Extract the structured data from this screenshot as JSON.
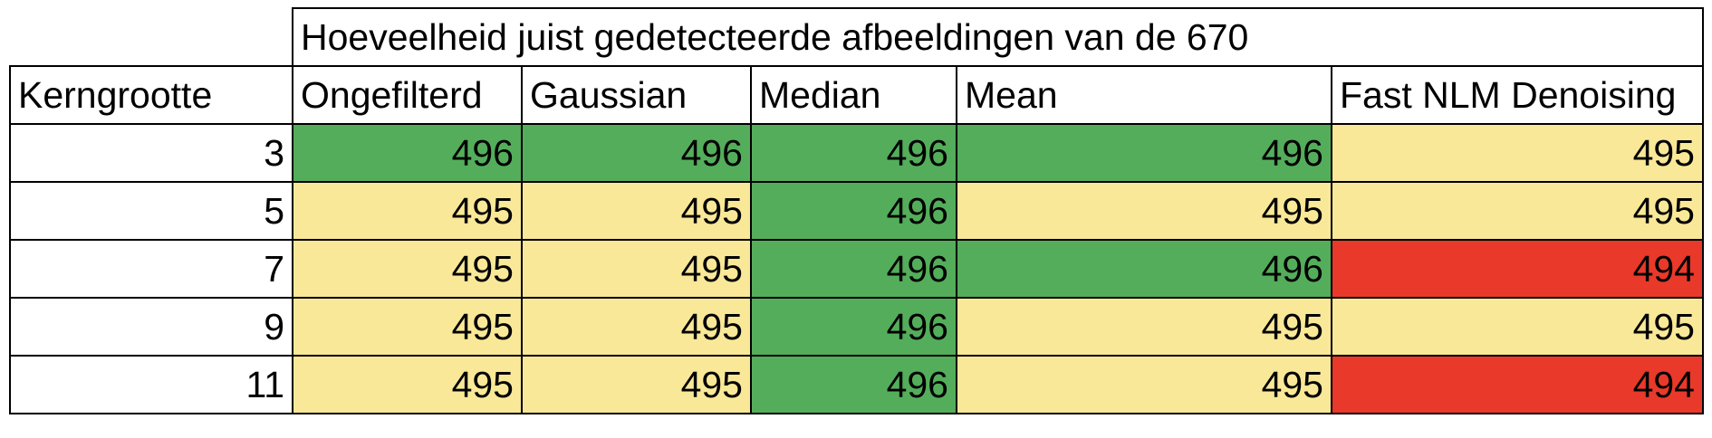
{
  "chart_data": {
    "type": "table",
    "title": "Hoeveelheid juist gedetecteerde afbeeldingen van de 670",
    "row_header": "Kerngrootte",
    "columns": [
      "Ongefilterd",
      "Gaussian",
      "Median",
      "Mean",
      "Fast NLM Denoising"
    ],
    "rows": [
      {
        "label": "3",
        "values": [
          496,
          496,
          496,
          496,
          495
        ]
      },
      {
        "label": "5",
        "values": [
          495,
          495,
          496,
          495,
          495
        ]
      },
      {
        "label": "7",
        "values": [
          495,
          495,
          496,
          496,
          494
        ]
      },
      {
        "label": "9",
        "values": [
          495,
          495,
          496,
          495,
          495
        ]
      },
      {
        "label": "11",
        "values": [
          495,
          495,
          496,
          495,
          494
        ]
      }
    ],
    "color_scale": {
      "496": "#54ad5a",
      "495": "#f9e897",
      "494": "#e8392a"
    }
  }
}
